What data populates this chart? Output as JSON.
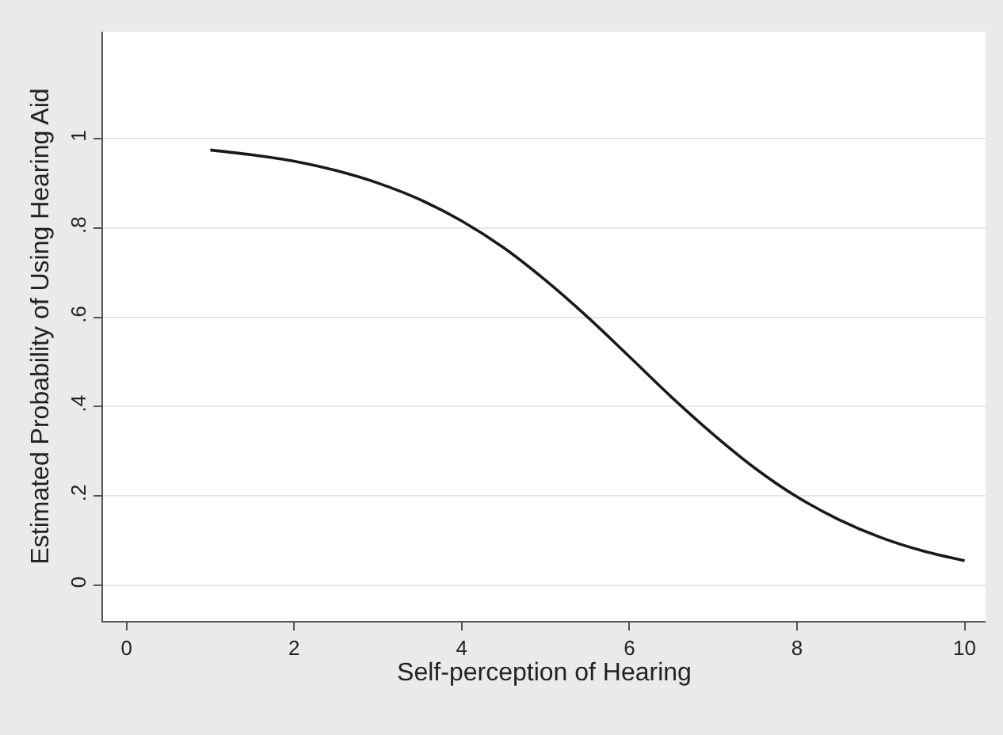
{
  "chart_data": {
    "type": "line",
    "xlabel": "Self-perception of Hearing",
    "ylabel": "Estimated Probability of Using Hearing Aid",
    "x": [
      1,
      1.5,
      2,
      2.5,
      3,
      3.5,
      4,
      4.5,
      5,
      5.5,
      6,
      6.5,
      7,
      7.5,
      8,
      8.5,
      9,
      9.5,
      10
    ],
    "series": [
      {
        "color": "#1a1a1a",
        "values": [
          0.975,
          0.964,
          0.95,
          0.929,
          0.901,
          0.864,
          0.816,
          0.756,
          0.683,
          0.601,
          0.512,
          0.422,
          0.338,
          0.262,
          0.198,
          0.147,
          0.107,
          0.077,
          0.055
        ]
      }
    ],
    "xlim": [
      -0.28,
      10.25
    ],
    "ylim": [
      -0.08,
      1.24
    ],
    "xticks": [
      0,
      2,
      4,
      6,
      8,
      10
    ],
    "yticks": [
      0,
      {
        "value": 0.2,
        "label": ".2"
      },
      {
        "value": 0.4,
        "label": ".4"
      },
      {
        "value": 0.6,
        "label": ".6"
      },
      {
        "value": 0.8,
        "label": ".8"
      },
      1
    ],
    "grid": "y",
    "marker": "none",
    "line_style": "solid"
  }
}
